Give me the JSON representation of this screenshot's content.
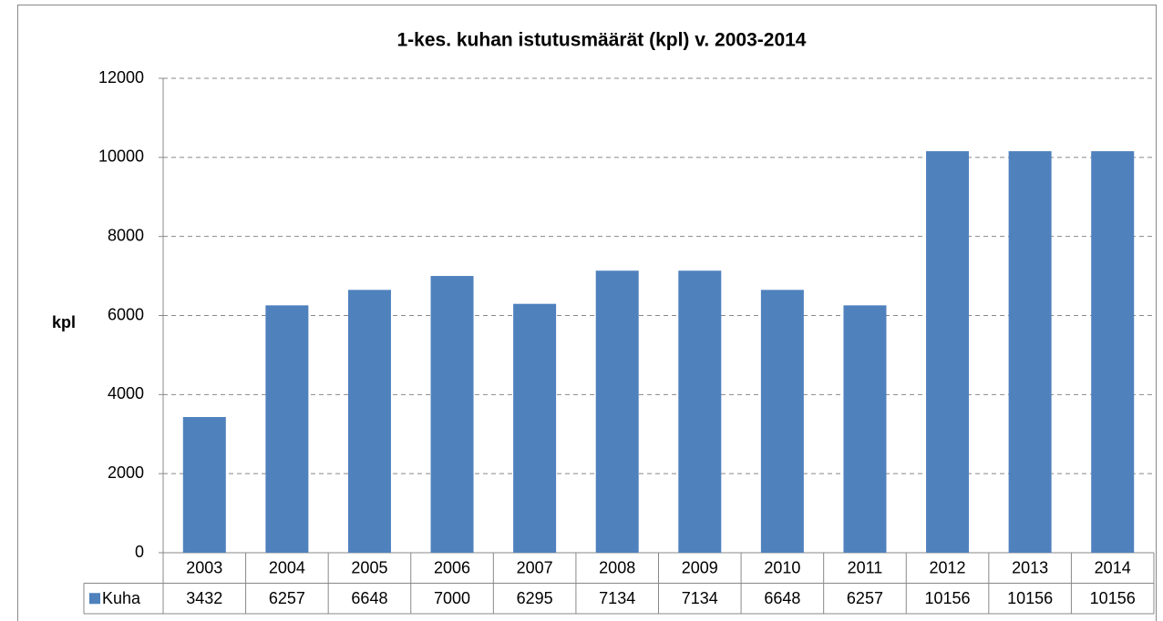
{
  "chart_data": {
    "type": "bar",
    "title": "1-kes. kuhan istutusmäärät (kpl) v. 2003-2014",
    "y_label": "kpl",
    "categories": [
      "2003",
      "2004",
      "2005",
      "2006",
      "2007",
      "2008",
      "2009",
      "2010",
      "2011",
      "2012",
      "2013",
      "2014"
    ],
    "series": [
      {
        "name": "Kuha",
        "color": "#4f81bd",
        "values": [
          3432,
          6257,
          6648,
          7000,
          6295,
          7134,
          7134,
          6648,
          6257,
          10156,
          10156,
          10156
        ]
      }
    ],
    "ylim": [
      0,
      12000
    ],
    "yticks": [
      0,
      2000,
      4000,
      6000,
      8000,
      10000,
      12000
    ],
    "grid": true
  }
}
